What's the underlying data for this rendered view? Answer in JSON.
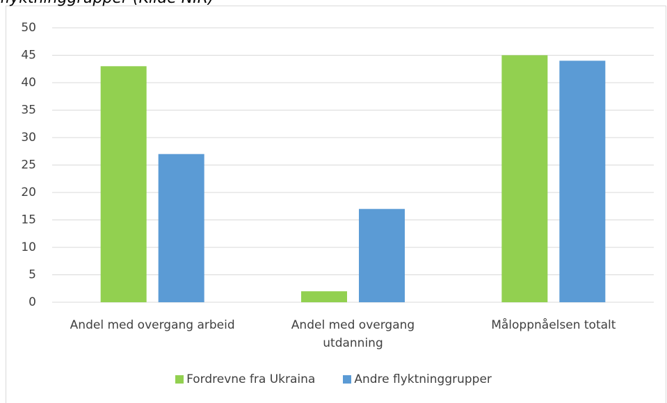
{
  "chart_data": {
    "type": "bar",
    "title": "flyktninggrupper (Kilde NIR)",
    "categories": [
      "Andel med overgang arbeid",
      "Andel med overgang utdanning",
      "Måloppnåelsen totalt"
    ],
    "series": [
      {
        "name": "Fordrevne fra Ukraina",
        "color": "#92d050",
        "values": [
          43,
          2,
          45
        ]
      },
      {
        "name": "Andre flyktninggrupper",
        "color": "#5b9bd5",
        "values": [
          27,
          17,
          44
        ]
      }
    ],
    "ylim": [
      0,
      50
    ],
    "yticks": [
      0,
      5,
      10,
      15,
      20,
      25,
      30,
      35,
      40,
      45,
      50
    ],
    "grid": true,
    "legend": "bottom"
  }
}
